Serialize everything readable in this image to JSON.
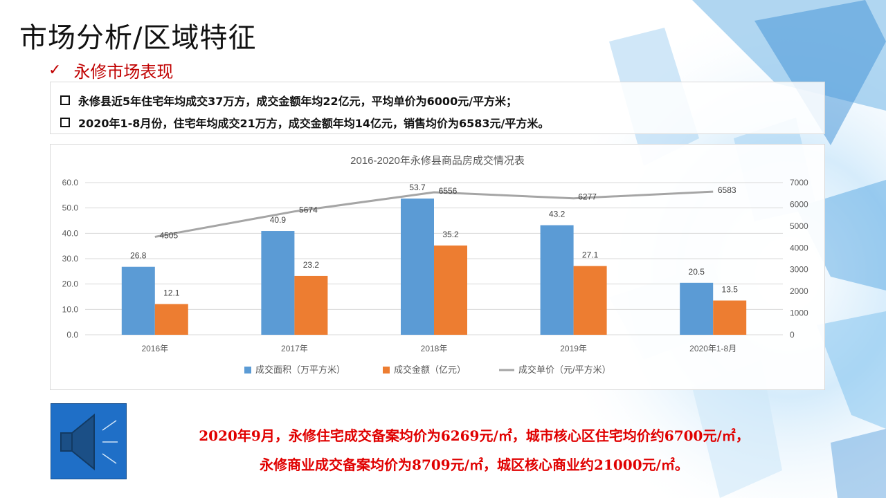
{
  "slide": {
    "title": "市场分析/区域特征",
    "subtitle": "永修市场表现",
    "bullets": [
      "永修县近5年住宅年均成交37万方，成交金额年均22亿元，平均单价为6000元/平方米；",
      "2020年1-8月份，住宅年均成交21万方，成交金额年均14亿元，销售均价为6583元/平方米。"
    ],
    "callout_lines": [
      "2020年9月，永修住宅成交备案均价为6269元/㎡，城市核心区住宅均价约6700元/㎡，",
      "永修商业成交备案均价为8709元/㎡，城区核心商业约21000元/㎡。"
    ],
    "icons": {
      "check": "check-icon",
      "speaker": "speaker-icon"
    }
  },
  "chart_data": {
    "type": "bar",
    "title": "2016-2020年永修县商品房成交情况表",
    "categories": [
      "2016年",
      "2017年",
      "2018年",
      "2019年",
      "2020年1-8月"
    ],
    "series": [
      {
        "name": "成交面积（万平方米）",
        "type": "bar",
        "axis": "left",
        "color": "#5b9bd5",
        "values": [
          26.8,
          40.9,
          53.7,
          43.2,
          20.5
        ]
      },
      {
        "name": "成交金额（亿元）",
        "type": "bar",
        "axis": "left",
        "color": "#ed7d31",
        "values": [
          12.1,
          23.2,
          35.2,
          27.1,
          13.5
        ]
      },
      {
        "name": "成交单价（元/平方米）",
        "type": "line",
        "axis": "right",
        "color": "#a5a5a5",
        "values": [
          4505,
          5674,
          6556,
          6277,
          6583
        ]
      }
    ],
    "y_left": {
      "min": 0,
      "max": 60,
      "ticks": [
        "0.0",
        "10.0",
        "20.0",
        "30.0",
        "40.0",
        "50.0",
        "60.0"
      ]
    },
    "y_right": {
      "min": 0,
      "max": 7000,
      "ticks": [
        "0",
        "1000",
        "2000",
        "3000",
        "4000",
        "5000",
        "6000",
        "7000"
      ]
    },
    "grid": true,
    "legend": "bottom"
  }
}
